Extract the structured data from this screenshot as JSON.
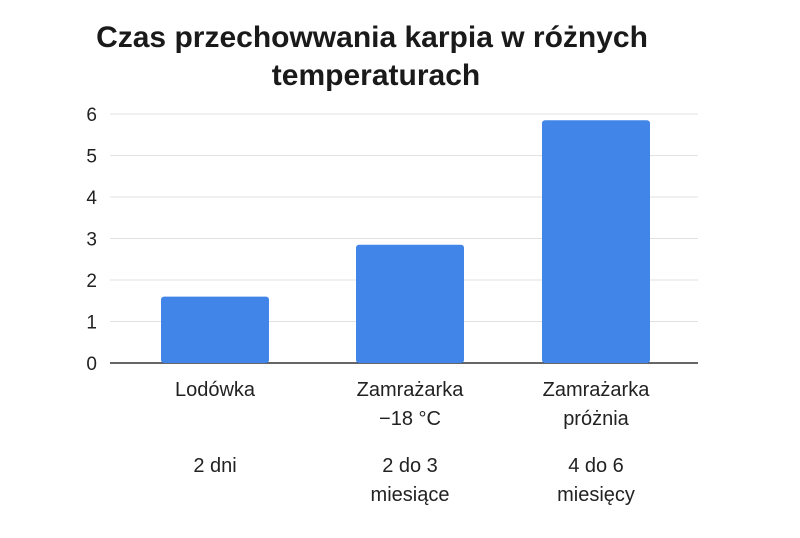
{
  "chart_data": {
    "type": "bar",
    "title_lines": [
      "Czas przechowwania karpia w różnych",
      "temperaturach"
    ],
    "categories": [
      {
        "label_lines": [
          "Lodówka"
        ],
        "note_lines": [
          "2 dni"
        ]
      },
      {
        "label_lines": [
          "Zamrażarka",
          "−18 °C"
        ],
        "note_lines": [
          "2 do 3",
          "miesiące"
        ]
      },
      {
        "label_lines": [
          "Zamrażarka",
          "próżnia"
        ],
        "note_lines": [
          "4 do 6",
          "miesięcy"
        ]
      }
    ],
    "values": [
      1.6,
      2.85,
      5.85
    ],
    "xlabel": "",
    "ylabel": "",
    "ylim": [
      0,
      6
    ],
    "yticks": [
      0,
      1,
      2,
      3,
      4,
      5,
      6
    ],
    "grid": true,
    "bar_color": "#4285e8"
  }
}
